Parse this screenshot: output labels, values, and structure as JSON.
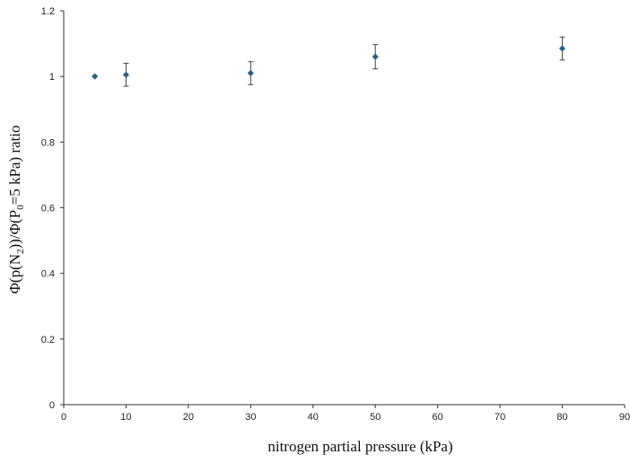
{
  "chart_data": {
    "type": "scatter",
    "title": "",
    "xlabel": "nitrogen partial pressure (kPa)",
    "ylabel_parts": [
      "Φ(p(N",
      "2",
      "))/Φ(P",
      "0",
      "=5 kPa) ratio"
    ],
    "xlim": [
      0,
      90
    ],
    "ylim": [
      0,
      1.2
    ],
    "xticks": [
      0,
      10,
      20,
      30,
      40,
      50,
      60,
      70,
      80,
      90
    ],
    "yticks": [
      0,
      0.2,
      0.4,
      0.6,
      0.8,
      1,
      1.2
    ],
    "xtick_labels": [
      "0",
      "10",
      "20",
      "30",
      "40",
      "50",
      "60",
      "70",
      "80",
      "90"
    ],
    "ytick_labels": [
      "0",
      "0.2",
      "0.4",
      "0.6",
      "0.8",
      "1",
      "1.2"
    ],
    "grid": false,
    "legend": "none",
    "marker_color": "#2f5f7f",
    "errorbar_color": "#444444",
    "axis_color": "#333333",
    "points": [
      {
        "x": 5,
        "y": 1.0,
        "err": 0.0
      },
      {
        "x": 10,
        "y": 1.005,
        "err": 0.035
      },
      {
        "x": 30,
        "y": 1.01,
        "err": 0.035
      },
      {
        "x": 50,
        "y": 1.06,
        "err": 0.037
      },
      {
        "x": 80,
        "y": 1.085,
        "err": 0.035
      }
    ]
  }
}
